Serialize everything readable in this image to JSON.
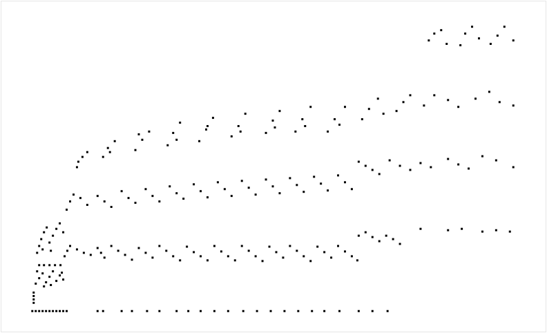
{
  "chart_data": {
    "type": "scatter",
    "color": "#000000",
    "marker": "square",
    "grid": false,
    "tick_labels": false,
    "xlim": [
      0,
      792
    ],
    "ylim": [
      0,
      482
    ],
    "xticks": [],
    "yticks": [],
    "x": [
      45,
      50,
      55,
      60,
      65,
      70,
      75,
      80,
      85,
      90,
      95,
      140,
      148,
      175,
      190,
      212,
      230,
      255,
      272,
      290,
      310,
      330,
      352,
      372,
      392,
      412,
      432,
      452,
      470,
      492,
      520,
      540,
      562,
      47,
      47,
      47,
      47,
      50,
      55,
      60,
      65,
      70,
      75,
      80,
      85,
      90,
      52,
      62,
      72,
      88,
      55,
      62,
      70,
      78,
      86,
      92,
      96,
      100,
      110,
      120,
      130,
      140,
      145,
      150,
      160,
      170,
      180,
      190,
      200,
      210,
      220,
      230,
      240,
      250,
      260,
      270,
      280,
      290,
      300,
      310,
      320,
      330,
      340,
      350,
      360,
      370,
      380,
      390,
      400,
      410,
      420,
      430,
      440,
      450,
      460,
      470,
      480,
      490,
      500,
      510,
      518,
      520,
      530,
      540,
      550,
      560,
      570,
      580,
      610,
      650,
      670,
      700,
      720,
      740,
      52,
      55,
      58,
      62,
      66,
      70,
      75,
      80,
      85,
      90,
      60,
      72,
      95,
      100,
      105,
      115,
      125,
      140,
      150,
      160,
      175,
      185,
      195,
      210,
      220,
      230,
      245,
      255,
      265,
      280,
      290,
      300,
      315,
      325,
      335,
      350,
      360,
      370,
      385,
      395,
      405,
      420,
      430,
      440,
      455,
      465,
      475,
      490,
      500,
      510,
      520,
      530,
      540,
      550,
      565,
      580,
      595,
      610,
      625,
      650,
      665,
      680,
      700,
      720,
      745,
      110,
      118,
      125,
      112,
      148,
      155,
      165,
      158,
      195,
      205,
      215,
      200,
      242,
      250,
      260,
      255,
      288,
      298,
      308,
      300,
      335,
      345,
      355,
      348,
      385,
      395,
      405,
      398,
      428,
      438,
      450,
      442,
      475,
      485,
      500,
      492,
      525,
      535,
      548,
      556,
      575,
      585,
      595,
      615,
      630,
      650,
      665,
      690,
      710,
      725,
      745,
      622,
      630,
      640,
      648,
      668,
      675,
      685,
      695,
      712,
      722,
      732,
      745
    ],
    "values": [
      30,
      30,
      30,
      30,
      30,
      30,
      30,
      30,
      30,
      30,
      30,
      30,
      30,
      30,
      30,
      30,
      30,
      30,
      30,
      30,
      30,
      30,
      30,
      30,
      30,
      30,
      30,
      30,
      30,
      30,
      30,
      30,
      30,
      42,
      47,
      52,
      57,
      70,
      78,
      85,
      72,
      80,
      88,
      74,
      82,
      76,
      88,
      66,
      68,
      86,
      97,
      97,
      97,
      97,
      97,
      110,
      118,
      125,
      120,
      115,
      112,
      122,
      115,
      108,
      125,
      118,
      112,
      105,
      122,
      115,
      108,
      125,
      118,
      110,
      104,
      124,
      116,
      110,
      104,
      125,
      117,
      110,
      104,
      125,
      118,
      110,
      103,
      124,
      116,
      108,
      125,
      118,
      110,
      103,
      124,
      116,
      108,
      125,
      117,
      110,
      104,
      140,
      145,
      138,
      132,
      140,
      135,
      128,
      150,
      148,
      150,
      146,
      148,
      146,
      115,
      125,
      135,
      145,
      152,
      130,
      140,
      150,
      158,
      145,
      120,
      118,
      178,
      190,
      200,
      195,
      185,
      198,
      190,
      182,
      205,
      195,
      188,
      208,
      198,
      190,
      212,
      202,
      194,
      215,
      205,
      196,
      218,
      208,
      198,
      220,
      210,
      200,
      222,
      212,
      202,
      224,
      214,
      204,
      226,
      216,
      206,
      228,
      218,
      208,
      248,
      242,
      236,
      230,
      250,
      242,
      236,
      246,
      240,
      252,
      244,
      238,
      256,
      250,
      240,
      240,
      255,
      262,
      248,
      255,
      268,
      278,
      262,
      265,
      280,
      292,
      288,
      272,
      290,
      305,
      280,
      278,
      295,
      312,
      300,
      285,
      300,
      318,
      292,
      290,
      308,
      322,
      298,
      292,
      310,
      328,
      300,
      292,
      310,
      328,
      302,
      310,
      325,
      340,
      318,
      322,
      335,
      345,
      330,
      345,
      338,
      328,
      340,
      350,
      335,
      330,
      425,
      435,
      440,
      420,
      418,
      435,
      445,
      428,
      420,
      432,
      445,
      425
    ]
  }
}
